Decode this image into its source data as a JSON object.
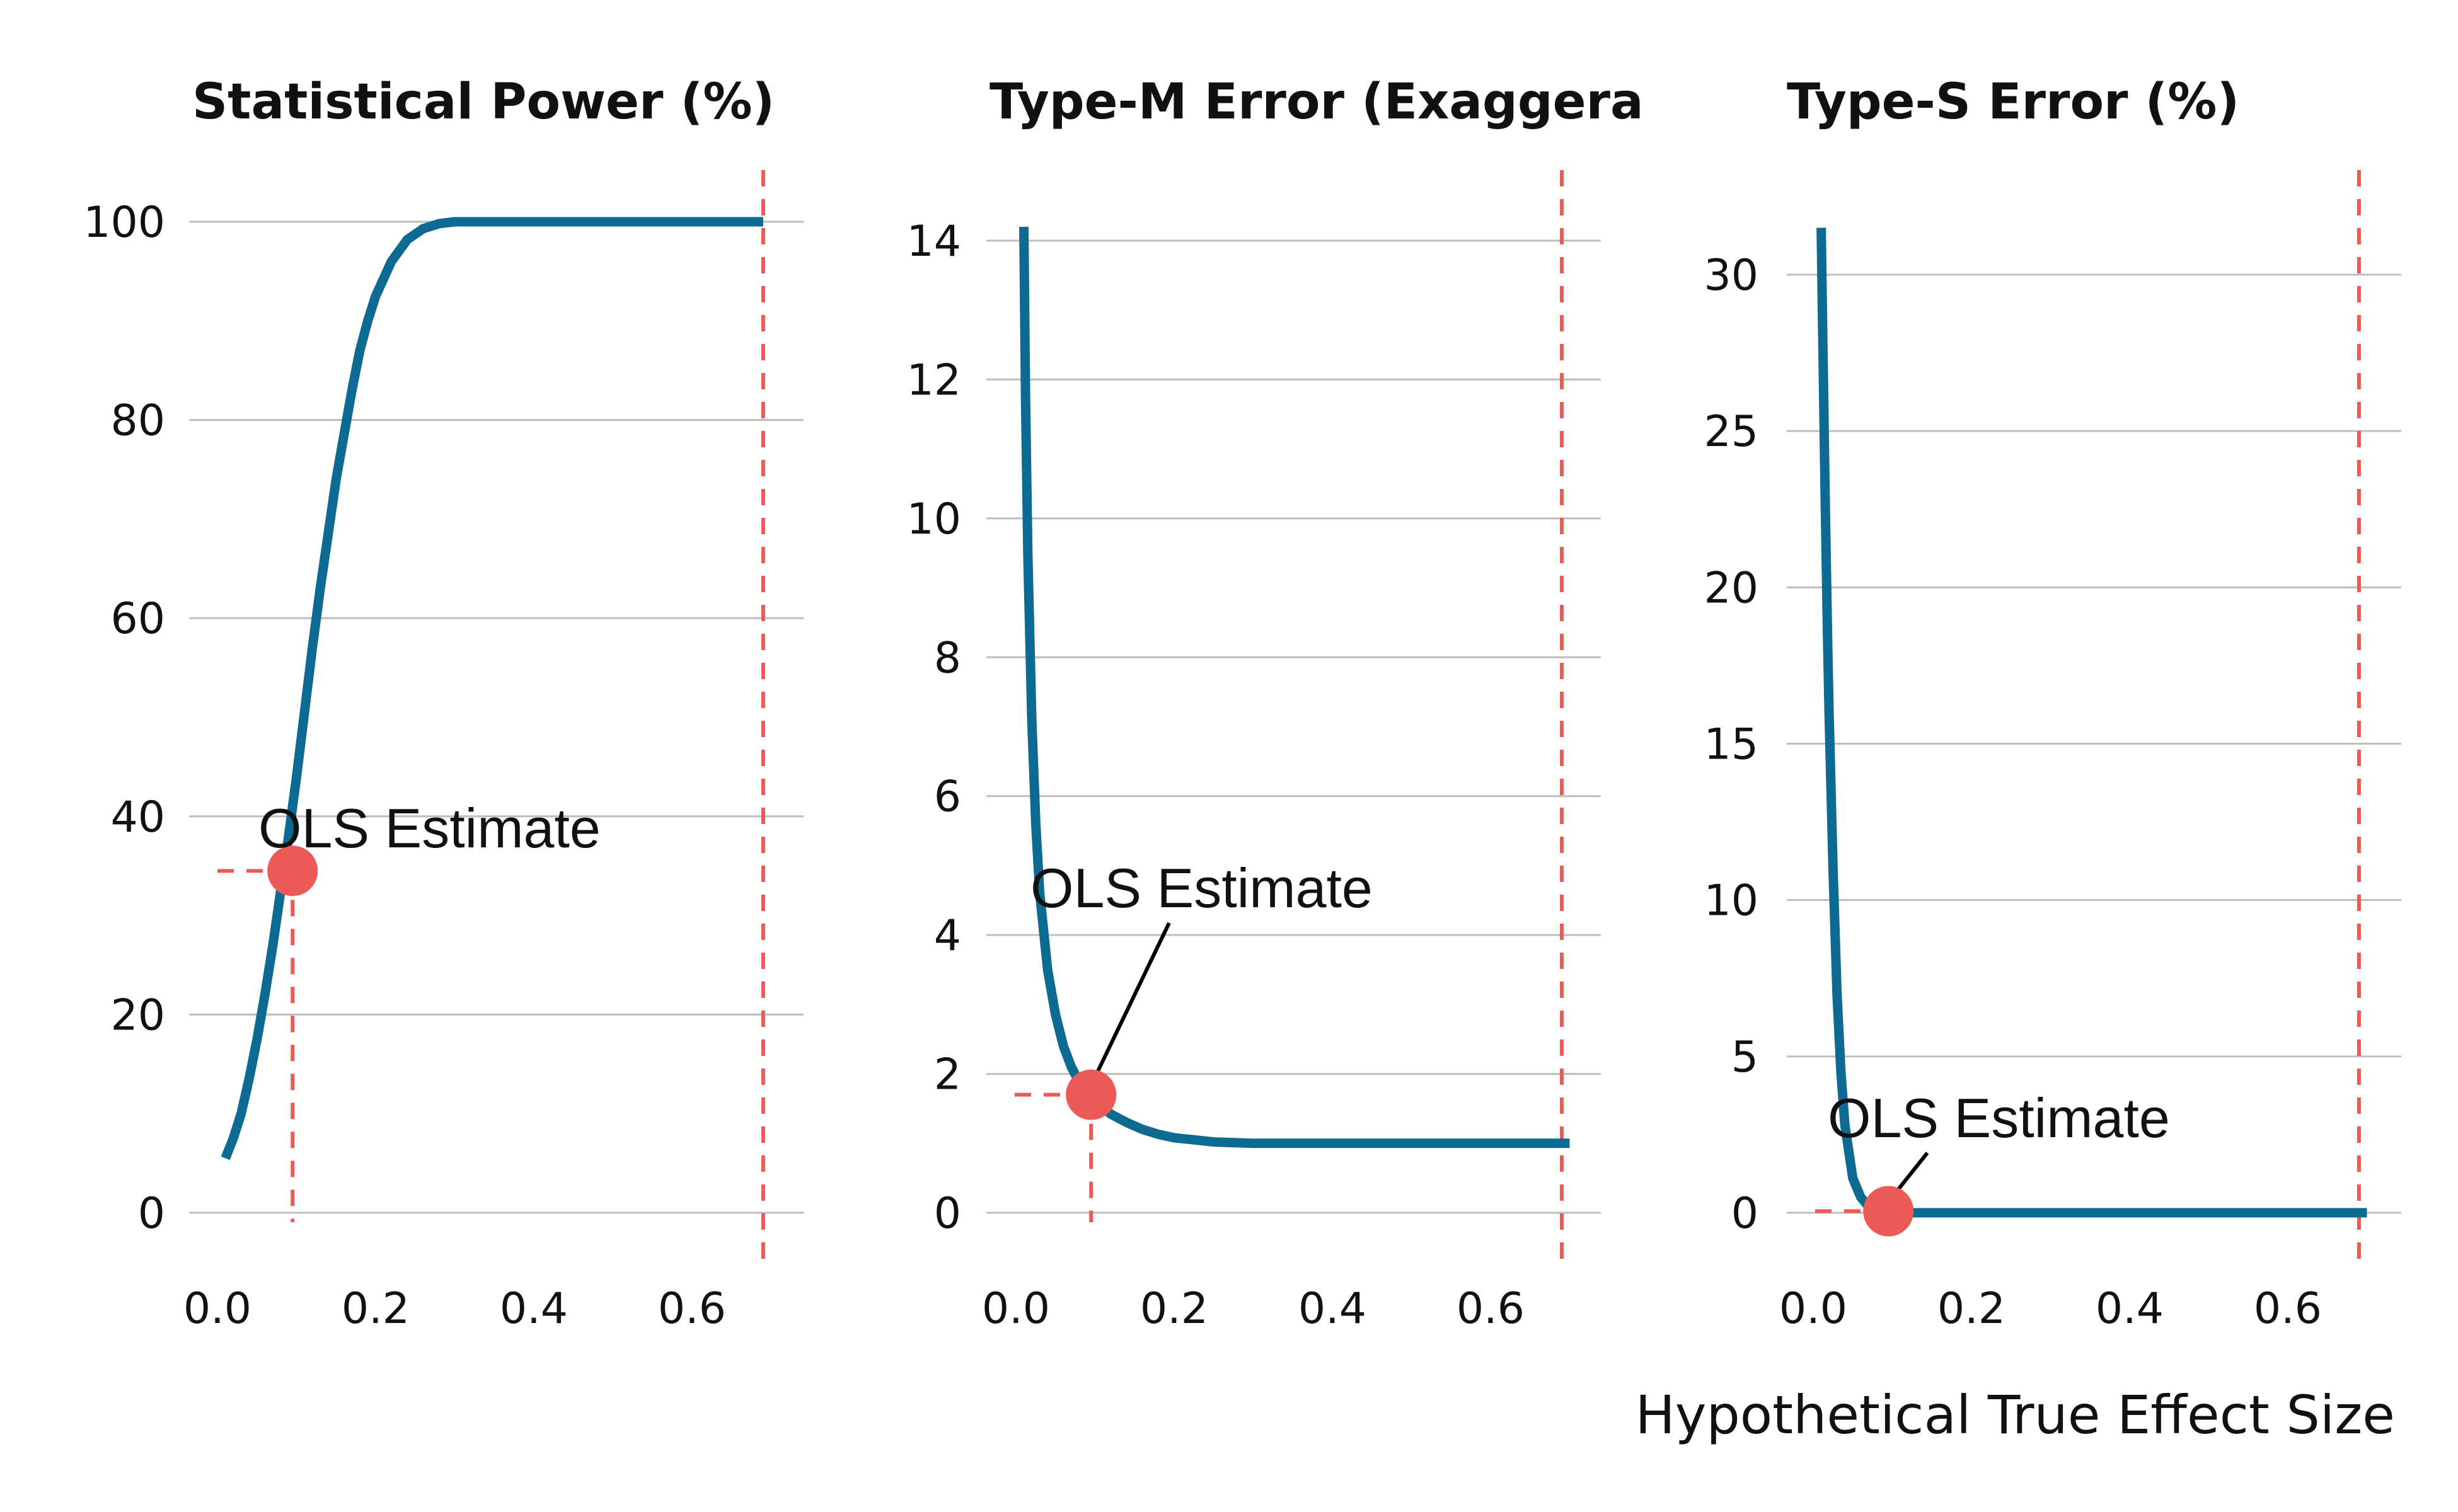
{
  "chart_data": [
    {
      "type": "line",
      "title": "Statistical Power (%)",
      "xlabel": "",
      "ylabel": "",
      "xlim": [
        0,
        0.7
      ],
      "ylim": [
        0,
        100
      ],
      "x_ticks": [
        "0.0",
        "0.2",
        "0.4",
        "0.6"
      ],
      "y_ticks": [
        "0",
        "20",
        "40",
        "60",
        "80",
        "100"
      ],
      "series": [
        {
          "x": [
            0.01,
            0.02,
            0.03,
            0.04,
            0.05,
            0.06,
            0.07,
            0.08,
            0.09,
            0.1,
            0.11,
            0.12,
            0.13,
            0.14,
            0.15,
            0.16,
            0.17,
            0.18,
            0.19,
            0.2,
            0.22,
            0.24,
            0.26,
            0.28,
            0.3,
            0.35,
            0.4,
            0.5,
            0.6,
            0.69
          ],
          "values": [
            5.5,
            7.5,
            10,
            13.5,
            17.5,
            22,
            27,
            32.5,
            38,
            44,
            50.5,
            57,
            63,
            68.5,
            74,
            78.5,
            83,
            87,
            90,
            92.5,
            96,
            98.2,
            99.3,
            99.8,
            100,
            100,
            100,
            100,
            100,
            100
          ]
        }
      ],
      "annotation": {
        "label": "OLS Estimate",
        "x": 0.095,
        "y": 34.5
      },
      "reference_x": 0.69
    },
    {
      "type": "line",
      "title": "Type-M Error (Exaggera",
      "xlabel": "",
      "ylabel": "",
      "xlim": [
        0,
        0.7
      ],
      "ylim": [
        0,
        14
      ],
      "x_ticks": [
        "0.0",
        "0.2",
        "0.4",
        "0.6"
      ],
      "y_ticks": [
        "0",
        "2",
        "4",
        "6",
        "8",
        "10",
        "12",
        "14"
      ],
      "series": [
        {
          "x": [
            0.01,
            0.012,
            0.015,
            0.02,
            0.025,
            0.03,
            0.04,
            0.05,
            0.06,
            0.07,
            0.08,
            0.09,
            0.1,
            0.12,
            0.14,
            0.16,
            0.18,
            0.2,
            0.25,
            0.3,
            0.4,
            0.5,
            0.6,
            0.7
          ],
          "values": [
            14.2,
            11.8,
            9.5,
            7.1,
            5.6,
            4.6,
            3.5,
            2.85,
            2.4,
            2.1,
            1.88,
            1.72,
            1.6,
            1.42,
            1.3,
            1.2,
            1.13,
            1.08,
            1.02,
            1.0,
            1.0,
            1.0,
            1.0,
            1.0
          ]
        }
      ],
      "annotation": {
        "label": "OLS Estimate",
        "x": 0.095,
        "y": 1.7
      },
      "reference_x": 0.69
    },
    {
      "type": "line",
      "title": "Type-S Error (%)",
      "xlabel": "Hypothetical True Effect Size",
      "ylabel": "",
      "xlim": [
        0,
        0.7
      ],
      "ylim": [
        0,
        30
      ],
      "x_ticks": [
        "0.0",
        "0.2",
        "0.4",
        "0.6"
      ],
      "y_ticks": [
        "0",
        "5",
        "10",
        "15",
        "20",
        "25",
        "30"
      ],
      "series": [
        {
          "x": [
            0.01,
            0.012,
            0.015,
            0.018,
            0.02,
            0.025,
            0.03,
            0.035,
            0.04,
            0.05,
            0.06,
            0.07,
            0.08,
            0.1,
            0.15,
            0.2,
            0.4,
            0.7
          ],
          "values": [
            31.5,
            28,
            23,
            18.5,
            16,
            11,
            7,
            4.5,
            2.8,
            1.1,
            0.5,
            0.2,
            0.05,
            0,
            0,
            0,
            0,
            0
          ]
        }
      ],
      "annotation": {
        "label": "OLS Estimate",
        "x": 0.095,
        "y": 0.05
      },
      "reference_x": 0.69
    }
  ],
  "colors": {
    "curve": "#0d6a93",
    "highlight": "#eb5a55",
    "grid": "#bdbdbd",
    "text": "#111111"
  }
}
